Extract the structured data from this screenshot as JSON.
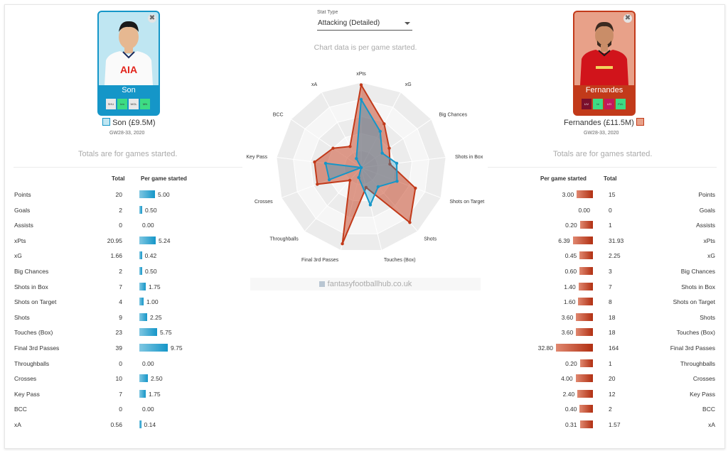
{
  "stat_type": {
    "label": "Stat Type",
    "selected": "Attacking (Detailed)"
  },
  "chart_note": "Chart data is per game started.",
  "brand": "fantasyfootballhub.co.uk",
  "totals_note": "Totals are for games started.",
  "headers": {
    "total": "Total",
    "per_game": "Per game started"
  },
  "colors": {
    "left": "#1596c8",
    "right": "#c23a1a"
  },
  "player_left": {
    "name": "Son",
    "subtitle": "Son (£9.5M)",
    "gw": "GW28-33, 2020",
    "fixtures": [
      "SHU",
      "bm",
      "WOL",
      "MN"
    ],
    "fixture_colors": [
      "#e8e8e8",
      "#3ddc84",
      "#e8e8e8",
      "#3ddc84"
    ],
    "jersey_text": "AIA"
  },
  "player_right": {
    "name": "Fernandes",
    "subtitle": "Fernandes (£11.5M)",
    "gw": "GW28-33, 2020",
    "fixtures": [
      "LIV",
      "bt",
      "LEI",
      "FUL"
    ],
    "fixture_colors": [
      "#7a0f2c",
      "#3ddc84",
      "#c2185b",
      "#3ddc84"
    ]
  },
  "stats_left": [
    {
      "label": "Points",
      "total": "20",
      "per": "5.00",
      "v": 5.0
    },
    {
      "label": "Goals",
      "total": "2",
      "per": "0.50",
      "v": 0.5
    },
    {
      "label": "Assists",
      "total": "0",
      "per": "0.00",
      "v": 0
    },
    {
      "label": "xPts",
      "total": "20.95",
      "per": "5.24",
      "v": 5.24
    },
    {
      "label": "xG",
      "total": "1.66",
      "per": "0.42",
      "v": 0.42
    },
    {
      "label": "Big Chances",
      "total": "2",
      "per": "0.50",
      "v": 0.5
    },
    {
      "label": "Shots in Box",
      "total": "7",
      "per": "1.75",
      "v": 1.75
    },
    {
      "label": "Shots on Target",
      "total": "4",
      "per": "1.00",
      "v": 1.0
    },
    {
      "label": "Shots",
      "total": "9",
      "per": "2.25",
      "v": 2.25
    },
    {
      "label": "Touches (Box)",
      "total": "23",
      "per": "5.75",
      "v": 5.75
    },
    {
      "label": "Final 3rd Passes",
      "total": "39",
      "per": "9.75",
      "v": 9.75
    },
    {
      "label": "Throughballs",
      "total": "0",
      "per": "0.00",
      "v": 0
    },
    {
      "label": "Crosses",
      "total": "10",
      "per": "2.50",
      "v": 2.5
    },
    {
      "label": "Key Pass",
      "total": "7",
      "per": "1.75",
      "v": 1.75
    },
    {
      "label": "BCC",
      "total": "0",
      "per": "0.00",
      "v": 0
    },
    {
      "label": "xA",
      "total": "0.56",
      "per": "0.14",
      "v": 0.14
    }
  ],
  "stats_right": [
    {
      "label": "Points",
      "total": "15",
      "per": "3.00",
      "v": 3.0
    },
    {
      "label": "Goals",
      "total": "0",
      "per": "0.00",
      "v": 0
    },
    {
      "label": "Assists",
      "total": "1",
      "per": "0.20",
      "v": 0.2
    },
    {
      "label": "xPts",
      "total": "31.93",
      "per": "6.39",
      "v": 6.39
    },
    {
      "label": "xG",
      "total": "2.25",
      "per": "0.45",
      "v": 0.45
    },
    {
      "label": "Big Chances",
      "total": "3",
      "per": "0.60",
      "v": 0.6
    },
    {
      "label": "Shots in Box",
      "total": "7",
      "per": "1.40",
      "v": 1.4
    },
    {
      "label": "Shots on Target",
      "total": "8",
      "per": "1.60",
      "v": 1.6
    },
    {
      "label": "Shots",
      "total": "18",
      "per": "3.60",
      "v": 3.6
    },
    {
      "label": "Touches (Box)",
      "total": "18",
      "per": "3.60",
      "v": 3.6
    },
    {
      "label": "Final 3rd Passes",
      "total": "164",
      "per": "32.80",
      "v": 32.8
    },
    {
      "label": "Throughballs",
      "total": "1",
      "per": "0.20",
      "v": 0.2
    },
    {
      "label": "Crosses",
      "total": "20",
      "per": "4.00",
      "v": 4.0
    },
    {
      "label": "Key Pass",
      "total": "12",
      "per": "2.40",
      "v": 2.4
    },
    {
      "label": "BCC",
      "total": "2",
      "per": "0.40",
      "v": 0.4
    },
    {
      "label": "xA",
      "total": "1.57",
      "per": "0.31",
      "v": 0.31
    }
  ],
  "chart_data": {
    "type": "radar",
    "axes": [
      "xPts",
      "xG",
      "Big Chances",
      "Shots in Box",
      "Shots on Target",
      "Shots",
      "Touches (Box)",
      "Final 3rd Passes",
      "Throughballs",
      "Crosses",
      "Key Pass",
      "BCC",
      "xA"
    ],
    "series": [
      {
        "name": "Son",
        "color": "#1596c8",
        "values": [
          0.8,
          0.48,
          0.3,
          0.42,
          0.45,
          0.3,
          0.45,
          0.12,
          0.0,
          0.4,
          0.42,
          0.0,
          0.12
        ]
      },
      {
        "name": "Fernandes",
        "color": "#c23a1a",
        "values": [
          0.97,
          0.58,
          0.4,
          0.34,
          0.68,
          0.86,
          0.24,
          0.92,
          0.2,
          0.55,
          0.55,
          0.4,
          0.28
        ]
      }
    ],
    "grid_levels": 5
  }
}
